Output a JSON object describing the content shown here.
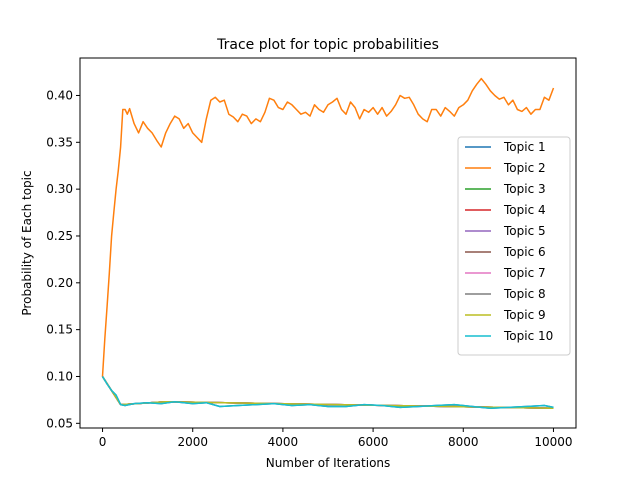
{
  "chart_data": {
    "type": "line",
    "title": "Trace plot for topic probabilities",
    "xlabel": "Number of Iterations",
    "ylabel": "Probability of Each topic",
    "xlim": [
      -500,
      10500
    ],
    "ylim": [
      0.045,
      0.44
    ],
    "xticks": [
      0,
      2000,
      4000,
      6000,
      8000,
      10000
    ],
    "xtick_labels": [
      "0",
      "2000",
      "4000",
      "6000",
      "8000",
      "10000"
    ],
    "yticks": [
      0.05,
      0.1,
      0.15,
      0.2,
      0.25,
      0.3,
      0.35,
      0.4
    ],
    "ytick_labels": [
      "0.05",
      "0.10",
      "0.15",
      "0.20",
      "0.25",
      "0.30",
      "0.35",
      "0.40"
    ],
    "grid": false,
    "legend_position": "right",
    "series": [
      {
        "name": "Topic 1",
        "color": "#1f77b4",
        "x": [
          0,
          100,
          200,
          300,
          400,
          500,
          700,
          1000,
          1300,
          1600,
          2000,
          2300,
          2600,
          3000,
          3400,
          3800,
          4200,
          4600,
          5000,
          5400,
          5800,
          6200,
          6600,
          7000,
          7400,
          7800,
          8200,
          8600,
          9000,
          9400,
          9800,
          10000
        ],
        "y": [
          0.1,
          0.092,
          0.085,
          0.08,
          0.07,
          0.069,
          0.071,
          0.072,
          0.071,
          0.073,
          0.071,
          0.072,
          0.068,
          0.069,
          0.07,
          0.071,
          0.069,
          0.07,
          0.068,
          0.068,
          0.07,
          0.069,
          0.067,
          0.068,
          0.069,
          0.07,
          0.068,
          0.066,
          0.067,
          0.068,
          0.069,
          0.067
        ]
      },
      {
        "name": "Topic 2",
        "color": "#ff7f0e",
        "x": [
          0,
          50,
          100,
          150,
          200,
          250,
          300,
          350,
          400,
          450,
          500,
          550,
          600,
          700,
          800,
          900,
          1000,
          1100,
          1200,
          1300,
          1400,
          1500,
          1600,
          1700,
          1800,
          1900,
          2000,
          2100,
          2200,
          2300,
          2400,
          2500,
          2600,
          2700,
          2800,
          2900,
          3000,
          3100,
          3200,
          3300,
          3400,
          3500,
          3600,
          3700,
          3800,
          3900,
          4000,
          4100,
          4200,
          4300,
          4400,
          4500,
          4600,
          4700,
          4800,
          4900,
          5000,
          5100,
          5200,
          5300,
          5400,
          5500,
          5600,
          5700,
          5800,
          5900,
          6000,
          6100,
          6200,
          6300,
          6400,
          6500,
          6600,
          6700,
          6800,
          6900,
          7000,
          7100,
          7200,
          7300,
          7400,
          7500,
          7600,
          7700,
          7800,
          7900,
          8000,
          8100,
          8200,
          8300,
          8400,
          8500,
          8600,
          8700,
          8800,
          8900,
          9000,
          9100,
          9200,
          9300,
          9400,
          9500,
          9600,
          9700,
          9800,
          9900,
          10000
        ],
        "y": [
          0.1,
          0.14,
          0.175,
          0.21,
          0.25,
          0.275,
          0.3,
          0.32,
          0.345,
          0.385,
          0.385,
          0.38,
          0.386,
          0.37,
          0.36,
          0.372,
          0.365,
          0.36,
          0.352,
          0.345,
          0.36,
          0.37,
          0.378,
          0.375,
          0.365,
          0.37,
          0.36,
          0.355,
          0.35,
          0.375,
          0.395,
          0.398,
          0.393,
          0.395,
          0.38,
          0.377,
          0.372,
          0.38,
          0.378,
          0.37,
          0.375,
          0.372,
          0.382,
          0.397,
          0.395,
          0.387,
          0.385,
          0.393,
          0.39,
          0.385,
          0.38,
          0.382,
          0.378,
          0.39,
          0.385,
          0.382,
          0.39,
          0.393,
          0.397,
          0.385,
          0.38,
          0.393,
          0.387,
          0.375,
          0.385,
          0.382,
          0.387,
          0.38,
          0.387,
          0.378,
          0.383,
          0.39,
          0.4,
          0.397,
          0.398,
          0.39,
          0.38,
          0.375,
          0.372,
          0.385,
          0.385,
          0.378,
          0.387,
          0.383,
          0.378,
          0.387,
          0.39,
          0.395,
          0.405,
          0.412,
          0.418,
          0.412,
          0.405,
          0.4,
          0.396,
          0.398,
          0.39,
          0.395,
          0.385,
          0.383,
          0.387,
          0.38,
          0.385,
          0.385,
          0.398,
          0.395,
          0.408
        ]
      },
      {
        "name": "Topic 3",
        "color": "#2ca02c",
        "x": [
          0,
          400,
          1400,
          10000
        ],
        "y": [
          0.1,
          0.07,
          0.073,
          0.066
        ]
      },
      {
        "name": "Topic 4",
        "color": "#d62728",
        "x": [
          0,
          400,
          1400,
          10000
        ],
        "y": [
          0.1,
          0.07,
          0.073,
          0.066
        ]
      },
      {
        "name": "Topic 5",
        "color": "#9467bd",
        "x": [
          0,
          400,
          1400,
          10000
        ],
        "y": [
          0.1,
          0.07,
          0.073,
          0.066
        ]
      },
      {
        "name": "Topic 6",
        "color": "#8c564b",
        "x": [
          0,
          400,
          1400,
          10000
        ],
        "y": [
          0.1,
          0.07,
          0.073,
          0.066
        ]
      },
      {
        "name": "Topic 7",
        "color": "#e377c2",
        "x": [
          0,
          400,
          1400,
          10000
        ],
        "y": [
          0.1,
          0.07,
          0.073,
          0.066
        ]
      },
      {
        "name": "Topic 8",
        "color": "#7f7f7f",
        "x": [
          0,
          400,
          1400,
          10000
        ],
        "y": [
          0.1,
          0.07,
          0.073,
          0.066
        ]
      },
      {
        "name": "Topic 9",
        "color": "#bcbd22",
        "x": [
          0,
          400,
          1400,
          10000
        ],
        "y": [
          0.1,
          0.07,
          0.073,
          0.066
        ]
      },
      {
        "name": "Topic 10",
        "color": "#17becf",
        "x": [
          0,
          100,
          200,
          300,
          400,
          500,
          700,
          1000,
          1300,
          1600,
          2000,
          2300,
          2600,
          3000,
          3400,
          3800,
          4200,
          4600,
          5000,
          5400,
          5800,
          6200,
          6600,
          7000,
          7400,
          7800,
          8200,
          8600,
          9000,
          9400,
          9800,
          10000
        ],
        "y": [
          0.1,
          0.092,
          0.085,
          0.08,
          0.07,
          0.069,
          0.071,
          0.072,
          0.071,
          0.073,
          0.071,
          0.072,
          0.068,
          0.069,
          0.07,
          0.071,
          0.069,
          0.07,
          0.068,
          0.068,
          0.07,
          0.069,
          0.067,
          0.068,
          0.069,
          0.07,
          0.068,
          0.066,
          0.067,
          0.068,
          0.069,
          0.067
        ]
      }
    ]
  }
}
